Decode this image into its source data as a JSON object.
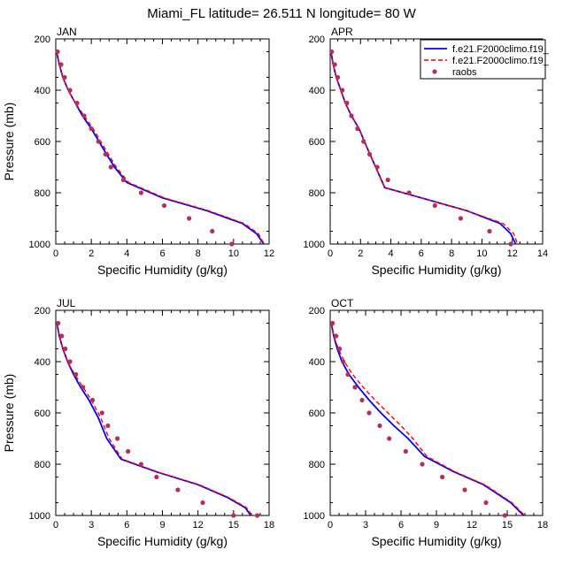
{
  "title": "Miami_FL  latitude= 26.511 N longitude= 80 W",
  "legend": {
    "placement": "top-right",
    "entries": [
      {
        "label": "f.e21.F2000climo.f19_",
        "style": "solid",
        "color": "#0000ff"
      },
      {
        "label": "f.e21.F2000climo.f19_",
        "style": "dashed",
        "color": "#ff0000"
      },
      {
        "label": "raobs",
        "style": "marker",
        "color": "#b03060"
      }
    ]
  },
  "chart_data": [
    {
      "type": "line",
      "panel_label": "JAN",
      "xlabel": "Specific Humidity (g/kg)",
      "ylabel": "Pressure (mb)",
      "xlim": [
        0,
        12
      ],
      "ylim": [
        1000,
        200
      ],
      "xticks": [
        "0",
        "2",
        "4",
        "6",
        "8",
        "10",
        "12"
      ],
      "yticks": [
        "200",
        "400",
        "600",
        "800",
        "1000"
      ],
      "series": [
        {
          "style": "solid",
          "color": "#0000ff",
          "x": [
            0.05,
            0.2,
            0.4,
            0.7,
            1.1,
            1.5,
            2.0,
            2.6,
            3.3,
            4.0,
            6.0,
            8.5,
            10.5,
            11.3,
            11.8
          ],
          "y": [
            250,
            300,
            350,
            400,
            450,
            500,
            550,
            620,
            700,
            760,
            820,
            870,
            920,
            960,
            1010
          ]
        },
        {
          "style": "dashed",
          "color": "#ff0000",
          "x": [
            0.05,
            0.2,
            0.4,
            0.7,
            1.1,
            1.6,
            2.1,
            2.7,
            3.4,
            4.1,
            6.1,
            8.6,
            10.6,
            11.4,
            11.8
          ],
          "y": [
            250,
            300,
            350,
            400,
            450,
            500,
            550,
            620,
            700,
            760,
            820,
            870,
            920,
            960,
            1010
          ]
        },
        {
          "style": "marker",
          "color": "#b03060",
          "x": [
            0.1,
            0.3,
            0.5,
            0.8,
            1.2,
            1.6,
            2.0,
            2.4,
            2.8,
            3.1,
            3.8,
            4.8,
            6.1,
            7.5,
            8.8,
            9.9
          ],
          "y": [
            250,
            300,
            350,
            400,
            450,
            500,
            550,
            600,
            650,
            700,
            750,
            800,
            850,
            900,
            950,
            1000
          ]
        }
      ]
    },
    {
      "type": "line",
      "panel_label": "APR",
      "xlabel": "Specific Humidity (g/kg)",
      "ylabel": "",
      "xlim": [
        0,
        14
      ],
      "ylim": [
        1000,
        200
      ],
      "xticks": [
        "0",
        "2",
        "4",
        "6",
        "8",
        "10",
        "12",
        "14"
      ],
      "yticks": [
        "200",
        "400",
        "600",
        "800",
        "1000"
      ],
      "series": [
        {
          "style": "solid",
          "color": "#0000ff",
          "x": [
            0.05,
            0.2,
            0.4,
            0.7,
            1.0,
            1.4,
            1.9,
            2.4,
            3.0,
            3.6,
            6.0,
            9.0,
            11.2,
            11.9,
            12.3
          ],
          "y": [
            250,
            300,
            350,
            400,
            450,
            500,
            550,
            620,
            700,
            780,
            820,
            870,
            920,
            960,
            1010
          ]
        },
        {
          "style": "dashed",
          "color": "#ff0000",
          "x": [
            0.05,
            0.2,
            0.4,
            0.7,
            1.0,
            1.4,
            1.9,
            2.4,
            3.0,
            3.6,
            6.0,
            9.0,
            11.4,
            12.1,
            12.4
          ],
          "y": [
            250,
            300,
            350,
            400,
            450,
            500,
            550,
            620,
            700,
            780,
            820,
            870,
            920,
            960,
            1010
          ]
        },
        {
          "style": "marker",
          "color": "#b03060",
          "x": [
            0.1,
            0.3,
            0.5,
            0.8,
            1.1,
            1.4,
            1.8,
            2.2,
            2.6,
            3.1,
            3.8,
            5.2,
            6.9,
            8.6,
            10.5,
            11.9
          ],
          "y": [
            250,
            300,
            350,
            400,
            450,
            500,
            550,
            600,
            650,
            700,
            750,
            800,
            850,
            900,
            950,
            1000
          ]
        }
      ]
    },
    {
      "type": "line",
      "panel_label": "JUL",
      "xlabel": "Specific Humidity (g/kg)",
      "ylabel": "Pressure (mb)",
      "xlim": [
        0,
        18
      ],
      "ylim": [
        1000,
        200
      ],
      "xticks": [
        "0",
        "3",
        "6",
        "9",
        "12",
        "15",
        "18"
      ],
      "yticks": [
        "200",
        "400",
        "600",
        "800",
        "1000"
      ],
      "series": [
        {
          "style": "solid",
          "color": "#0000ff",
          "x": [
            0.1,
            0.3,
            0.6,
            1.0,
            1.5,
            2.1,
            2.8,
            3.6,
            4.3,
            5.5,
            8.5,
            12.0,
            14.5,
            16.0,
            16.6
          ],
          "y": [
            250,
            300,
            350,
            400,
            450,
            500,
            550,
            620,
            700,
            780,
            830,
            880,
            930,
            970,
            1010
          ]
        },
        {
          "style": "dashed",
          "color": "#ff0000",
          "x": [
            0.1,
            0.3,
            0.6,
            1.0,
            1.6,
            2.3,
            3.0,
            3.8,
            4.5,
            5.6,
            8.6,
            12.1,
            14.6,
            16.1,
            16.7
          ],
          "y": [
            250,
            300,
            350,
            400,
            450,
            500,
            550,
            620,
            700,
            780,
            830,
            880,
            930,
            970,
            1010
          ]
        },
        {
          "style": "marker",
          "color": "#b03060",
          "x": [
            0.2,
            0.5,
            0.8,
            1.2,
            1.7,
            2.3,
            3.1,
            3.9,
            4.4,
            5.2,
            6.1,
            7.2,
            8.5,
            10.3,
            12.4,
            15.0,
            17.0
          ],
          "y": [
            250,
            300,
            350,
            400,
            450,
            500,
            550,
            600,
            650,
            700,
            750,
            800,
            850,
            900,
            950,
            1000,
            1000
          ]
        }
      ]
    },
    {
      "type": "line",
      "panel_label": "OCT",
      "xlabel": "Specific Humidity (g/kg)",
      "ylabel": "",
      "xlim": [
        0,
        18
      ],
      "ylim": [
        1000,
        200
      ],
      "xticks": [
        "0",
        "3",
        "6",
        "9",
        "12",
        "15",
        "18"
      ],
      "yticks": [
        "200",
        "400",
        "600",
        "800",
        "1000"
      ],
      "series": [
        {
          "style": "solid",
          "color": "#0000ff",
          "x": [
            0.1,
            0.3,
            0.6,
            1.0,
            1.6,
            2.4,
            3.3,
            4.3,
            5.4,
            6.6,
            8.0,
            10.5,
            13.0,
            15.3,
            16.5
          ],
          "y": [
            250,
            300,
            350,
            400,
            450,
            500,
            550,
            600,
            650,
            700,
            770,
            830,
            880,
            950,
            1005
          ]
        },
        {
          "style": "dashed",
          "color": "#ff0000",
          "x": [
            0.1,
            0.3,
            0.7,
            1.2,
            1.9,
            2.8,
            3.8,
            4.9,
            6.0,
            7.0,
            8.2,
            10.6,
            13.1,
            15.4,
            16.6
          ],
          "y": [
            250,
            300,
            350,
            400,
            450,
            500,
            550,
            600,
            650,
            700,
            770,
            830,
            880,
            950,
            1005
          ]
        },
        {
          "style": "marker",
          "color": "#b03060",
          "x": [
            0.2,
            0.5,
            0.8,
            1.1,
            1.5,
            2.1,
            2.7,
            3.3,
            4.2,
            5.0,
            6.4,
            7.8,
            9.5,
            11.4,
            13.2,
            14.8
          ],
          "y": [
            250,
            300,
            350,
            400,
            450,
            500,
            550,
            600,
            650,
            700,
            750,
            800,
            850,
            900,
            950,
            1000
          ]
        }
      ]
    }
  ]
}
